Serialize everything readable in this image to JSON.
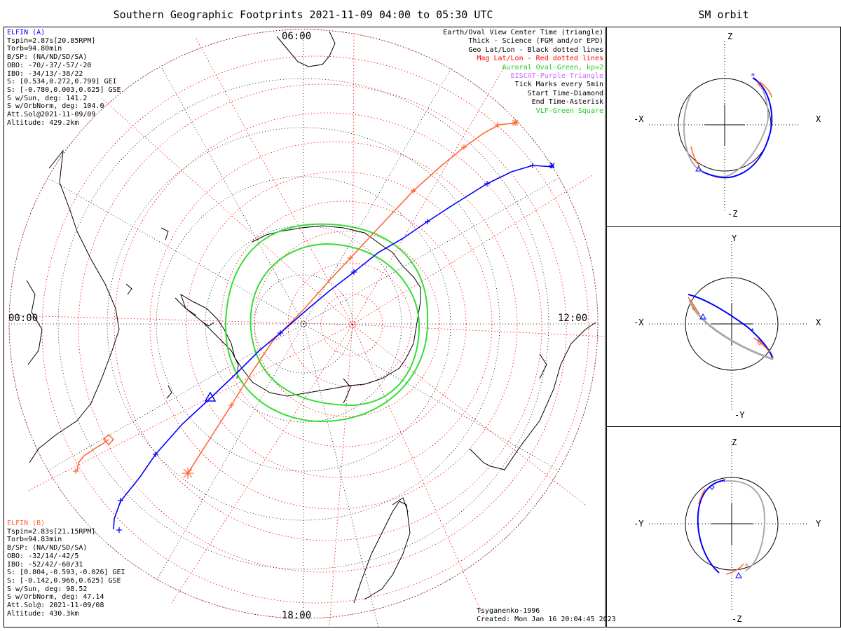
{
  "title": "Southern Geographic Footprints 2021-11-09 04:00 to 05:30 UTC",
  "side_title": "SM orbit",
  "hours": {
    "top": "06:00",
    "left": "00:00",
    "right": "12:00",
    "bottom": "18:00"
  },
  "elfin_a": {
    "name": "ELFIN (A)",
    "color": "#0000ff",
    "lines": [
      "Tspin=2.87s[20.85RPM]",
      "Torb=94.80min",
      "B/SP: (NA/ND/SD/SA)",
      "OBO: -70/-37/-57/-20",
      "IBO: -34/13/-38/22",
      "S: [0.534,0.272,0.799] GEI",
      "S: [-0.780,0.003,0.625] GSE",
      "S w/Sun, deg: 141.2",
      "S w/OrbNorm, deg: 104.0",
      "Att.Sol@2021-11-09/09",
      "Altitude: 429.2km"
    ]
  },
  "elfin_b": {
    "name": "ELFIN (B)",
    "color": "#ff6633",
    "lines": [
      "Tspin=2.83s[21.15RPM]",
      "Torb=94.83min",
      "B/SP: (NA/ND/SD/SA)",
      "OBO: -32/14/-42/5",
      "IBO: -52/42/-60/31",
      "S: [0.804,-0.593,-0.026] GEI",
      "S: [-0.142,0.966,0.625] GSE",
      "S w/Sun, deg: 98.52",
      "S w/OrbNorm, deg: 47.14",
      "Att.Sol@: 2021-11-09/08",
      "Altitude: 430.3km"
    ]
  },
  "legend": [
    {
      "text": "Earth/Oval View Center Time (triangle)",
      "color": "#000000"
    },
    {
      "text": "Thick - Science (FGM and/or EPD)",
      "color": "#000000"
    },
    {
      "text": "Geo Lat/Lon - Black dotted lines",
      "color": "#000000"
    },
    {
      "text": "Mag Lat/Lon - Red dotted lines",
      "color": "#ff0000"
    },
    {
      "text": "Auroral Oval-Green, kp=2",
      "color": "#22cc22"
    },
    {
      "text": "EISCAT-Purple Triangle",
      "color": "#cc66ff"
    },
    {
      "text": "Tick Marks every 5min",
      "color": "#000000"
    },
    {
      "text": "Start Time-Diamond",
      "color": "#000000"
    },
    {
      "text": "End Time-Asterisk",
      "color": "#000000"
    },
    {
      "text": "VLF-Green Square",
      "color": "#22cc22"
    }
  ],
  "credit": {
    "model": "Tsyganenko-1996",
    "created": "Created: Mon Jan 16 20:04:45 2023"
  },
  "panels": [
    {
      "top": "Z",
      "bottom": "-Z",
      "left": "-X",
      "right": "X"
    },
    {
      "top": "Y",
      "bottom": "-Y",
      "left": "-X",
      "right": "X"
    },
    {
      "top": "Z",
      "bottom": "-Z",
      "left": "-Y",
      "right": "Y"
    }
  ],
  "colors": {
    "oval": "#33dd33",
    "grid_mag": "#ff0000",
    "orbit_gray": "#aaaaaa"
  }
}
